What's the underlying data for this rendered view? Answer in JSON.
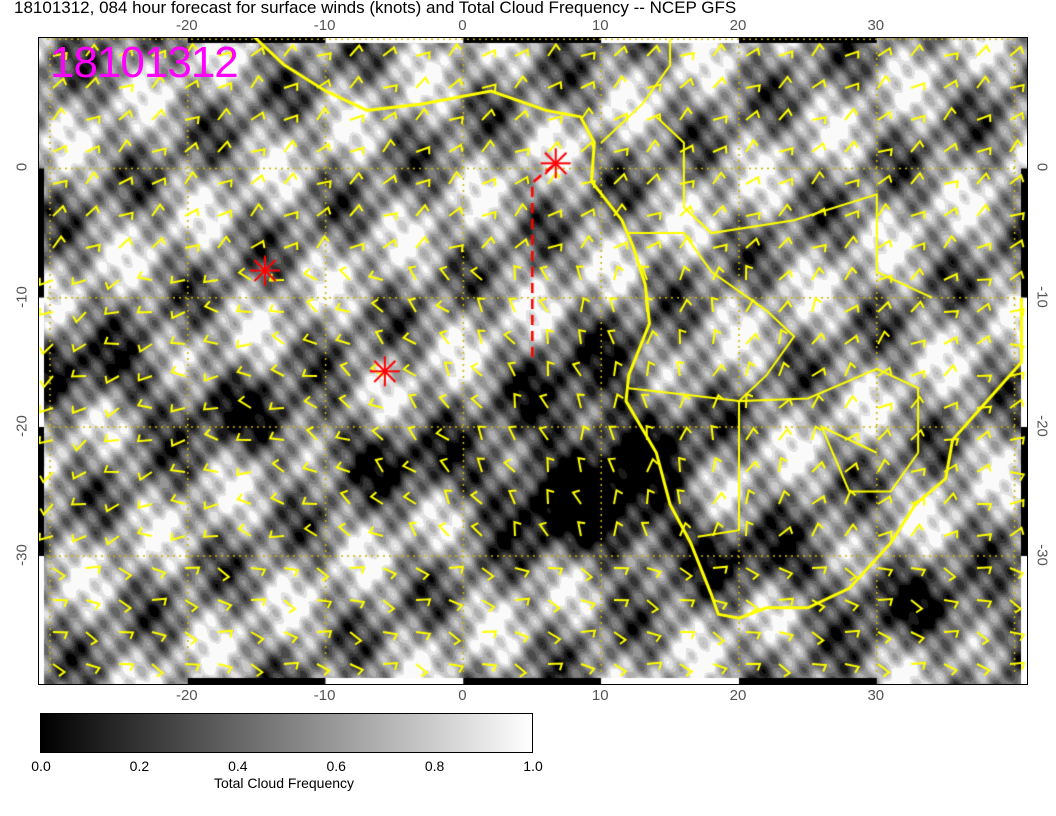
{
  "title": "18101312, 084 hour forecast for surface winds (knots) and Total Cloud Frequency -- NCEP GFS",
  "stamp": "18101312",
  "axes": {
    "lon_ticks": [
      "-20",
      "-10",
      "0",
      "10",
      "20",
      "30"
    ],
    "lon_values": [
      -20,
      -10,
      0,
      10,
      20,
      30
    ],
    "lat_ticks": [
      "0",
      "-10",
      "-20",
      "-30"
    ],
    "lat_values": [
      0,
      -10,
      -20,
      -30
    ],
    "lon_range": [
      -30.8,
      40.9
    ],
    "lat_range": [
      -39.9,
      10.1
    ]
  },
  "markers": [
    {
      "type": "red-star",
      "lon": -14.4,
      "lat": -7.9
    },
    {
      "type": "red-star",
      "lon": -5.7,
      "lat": -15.7
    },
    {
      "type": "red-star",
      "lon": 6.7,
      "lat": 0.4
    }
  ],
  "track": {
    "color": "#ff0000",
    "points": [
      [
        5.0,
        -14.6
      ],
      [
        5.0,
        -1.1
      ],
      [
        6.7,
        0.4
      ]
    ]
  },
  "colors": {
    "winds": "#ffff00",
    "coastline": "#ffff00",
    "stamp": "#ff00ff",
    "markers": "#ff0000",
    "graticule": "#c8b400"
  },
  "colorbar": {
    "label": "Total Cloud Frequency",
    "ticks": [
      "0.0",
      "0.2",
      "0.4",
      "0.6",
      "0.8",
      "1.0"
    ],
    "range": [
      0,
      1
    ],
    "colormap": "black-to-white"
  }
}
